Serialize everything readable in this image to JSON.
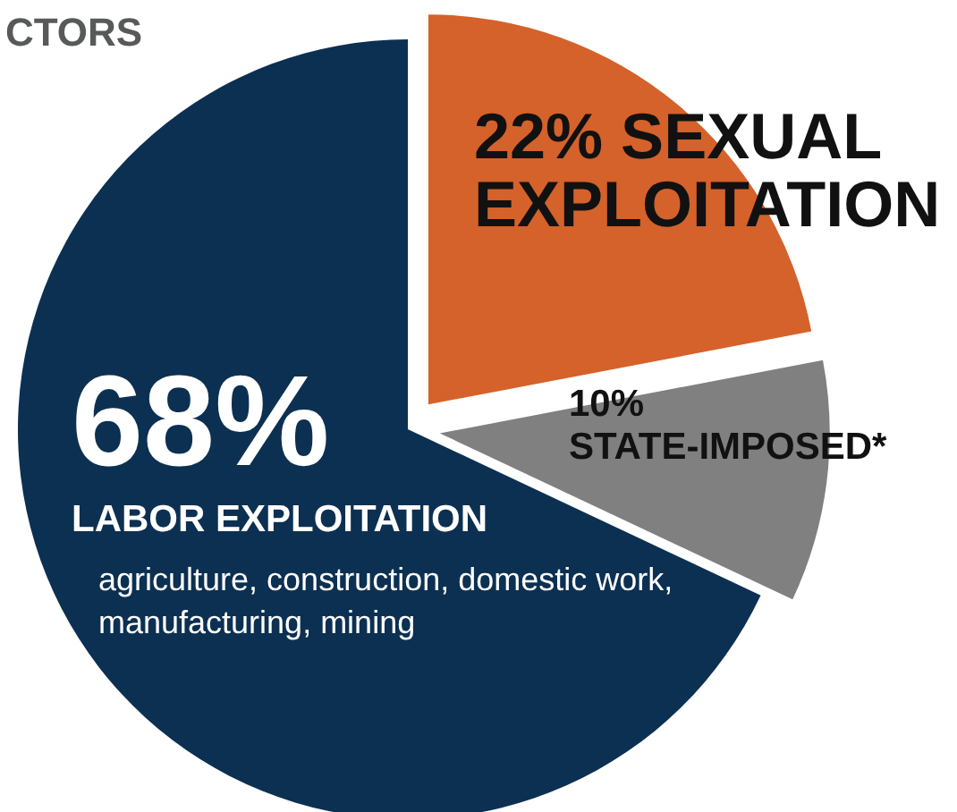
{
  "chart_data": {
    "type": "pie",
    "title": "CTORS",
    "categories": [
      "SEXUAL EXPLOITATION",
      "STATE-IMPOSED*",
      "LABOR EXPLOITATION"
    ],
    "values": [
      22,
      10,
      68
    ],
    "value_labels": [
      "22%",
      "10%",
      "68%"
    ],
    "colors": [
      "#d4622a",
      "#808080",
      "#0c3052"
    ],
    "annotations": [
      "agriculture, construction, domestic work, manufacturing, mining"
    ],
    "legend": false
  }
}
